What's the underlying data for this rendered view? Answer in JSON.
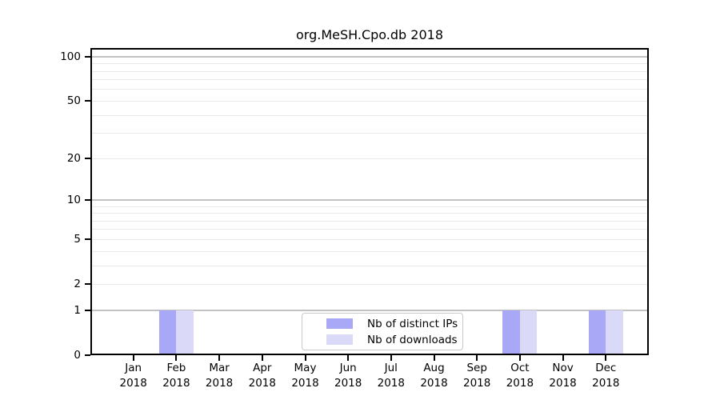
{
  "chart_data": {
    "type": "bar",
    "title": "org.MeSH.Cpo.db 2018",
    "categories": [
      "Jan 2018",
      "Feb 2018",
      "Mar 2018",
      "Apr 2018",
      "May 2018",
      "Jun 2018",
      "Jul 2018",
      "Aug 2018",
      "Sep 2018",
      "Oct 2018",
      "Nov 2018",
      "Dec 2018"
    ],
    "series": [
      {
        "name": "Nb of distinct IPs",
        "color": "#a8a8f7",
        "values": [
          0,
          1,
          0,
          0,
          0,
          0,
          0,
          0,
          0,
          1,
          0,
          1
        ]
      },
      {
        "name": "Nb of downloads",
        "color": "#dadaf8",
        "values": [
          0,
          1,
          0,
          0,
          0,
          0,
          0,
          0,
          0,
          1,
          0,
          1
        ]
      }
    ],
    "xlabel": "",
    "ylabel": "",
    "yscale": "log10(v+1)",
    "ylim": [
      0,
      115
    ],
    "yticks": [
      100,
      50,
      20,
      10,
      5,
      2,
      1,
      0
    ],
    "major_gridlines": [
      1,
      10,
      100
    ],
    "minor_gridlines": [
      2,
      3,
      4,
      5,
      6,
      7,
      8,
      9,
      20,
      30,
      40,
      50,
      60,
      70,
      80,
      90
    ],
    "grid": true,
    "legend_position": "bottom-center"
  },
  "colors": {
    "background": "#ffffff",
    "frame": "#000000",
    "grid_major": "#c2c2c2",
    "grid_minor": "#eaeaea",
    "bar_distinct_ips": "#a8a8f7",
    "bar_downloads": "#dadaf8",
    "legend_border": "#c9c9c9",
    "text": "#000000"
  }
}
